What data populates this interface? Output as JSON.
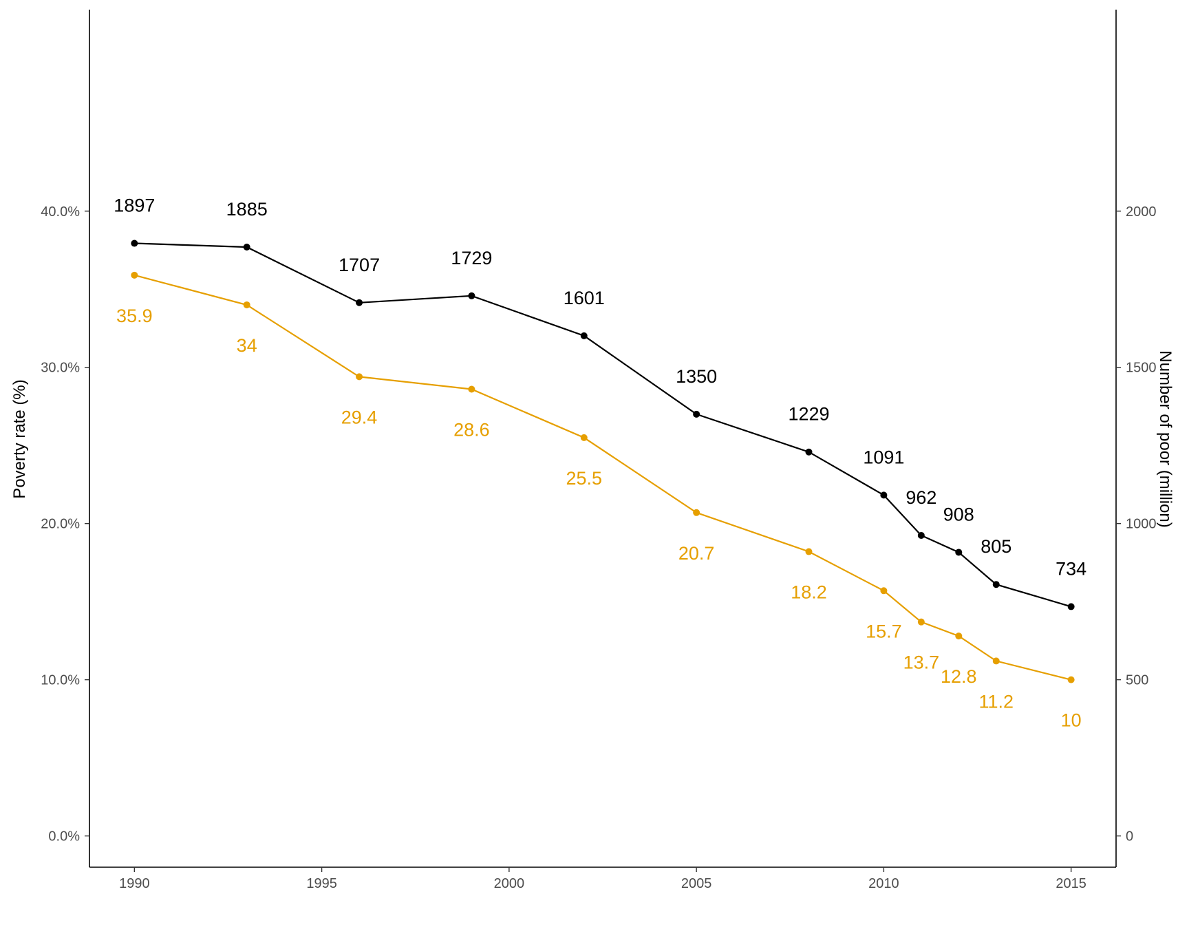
{
  "chart_data": {
    "type": "line",
    "title": "",
    "xlabel": "",
    "ylabel_left": "Poverty rate (%)",
    "ylabel_right": "Number of poor (million)",
    "x": [
      1990,
      1993,
      1996,
      1999,
      2002,
      2005,
      2008,
      2010,
      2011,
      2012,
      2013,
      2015
    ],
    "x_ticks": [
      1990,
      1995,
      2000,
      2005,
      2010,
      2015
    ],
    "x_tick_labels": [
      "1990",
      "1995",
      "2000",
      "2005",
      "2010",
      "2015"
    ],
    "xlim": [
      1988.8,
      2016.2
    ],
    "y_left_ticks": [
      0,
      10,
      20,
      30,
      40
    ],
    "y_left_tick_labels": [
      "0.0%",
      "10.0%",
      "20.0%",
      "30.0%",
      "40.0%"
    ],
    "y_left_lim": [
      -2.0,
      52.9
    ],
    "y_right_ticks": [
      0,
      500,
      1000,
      1500,
      2000
    ],
    "y_right_tick_labels": [
      "0",
      "500",
      "1000",
      "1500",
      "2000"
    ],
    "grid": false,
    "series": [
      {
        "axis": "right",
        "color": "#000000",
        "values": [
          1897,
          1885,
          1707,
          1729,
          1601,
          1350,
          1229,
          1091,
          962,
          908,
          805,
          734
        ],
        "labels": [
          "1897",
          "1885",
          "1707",
          "1729",
          "1601",
          "1350",
          "1229",
          "1091",
          "962",
          "908",
          "805",
          "734"
        ]
      },
      {
        "axis": "left",
        "color": "#E69F00",
        "values": [
          35.9,
          34.0,
          29.4,
          28.6,
          25.5,
          20.7,
          18.2,
          15.7,
          13.7,
          12.8,
          11.2,
          10.0
        ],
        "labels": [
          "35.9",
          "34",
          "29.4",
          "28.6",
          "25.5",
          "20.7",
          "18.2",
          "15.7",
          "13.7",
          "12.8",
          "11.2",
          "10"
        ]
      }
    ]
  }
}
